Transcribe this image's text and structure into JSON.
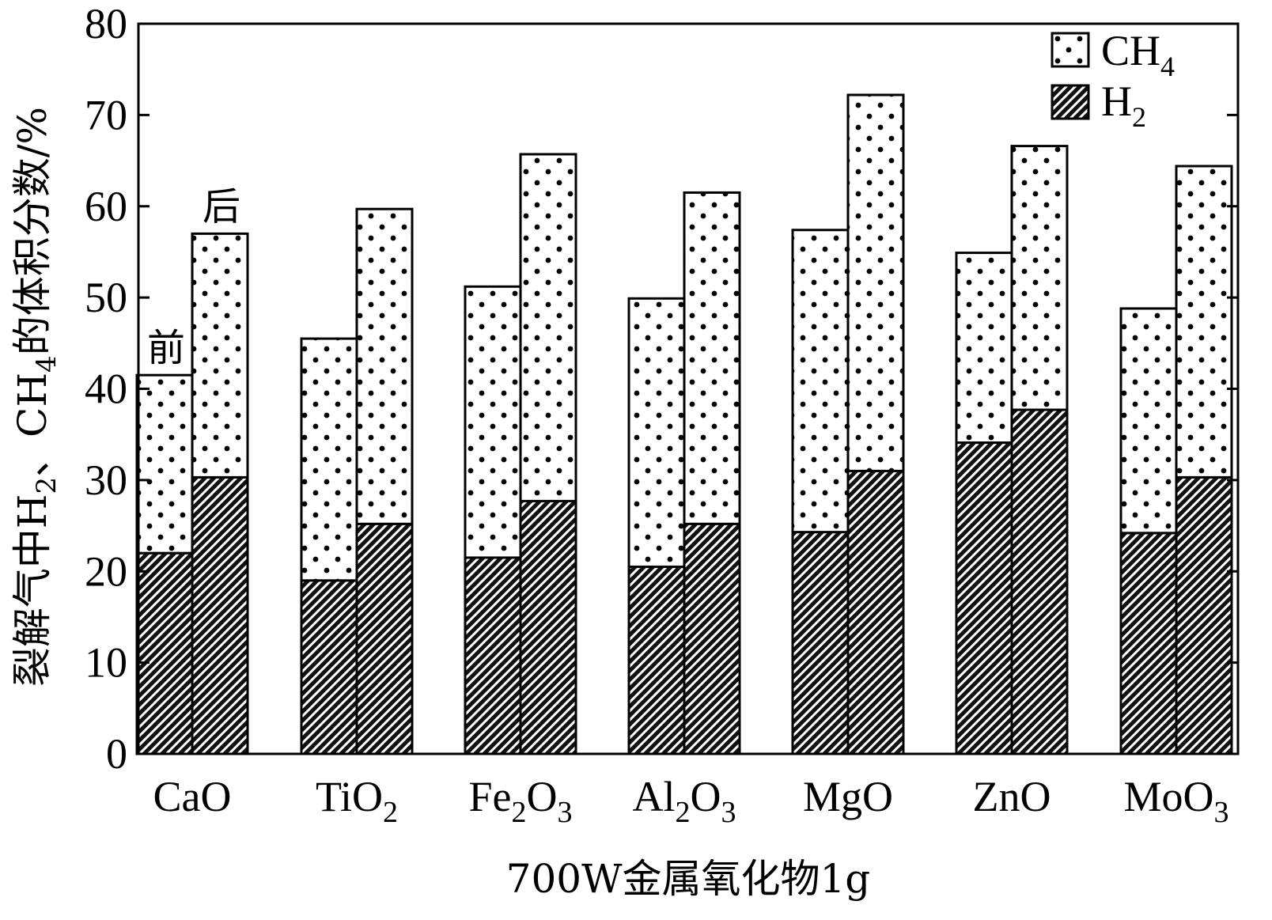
{
  "chart_data": {
    "type": "bar",
    "stacked": true,
    "categories": [
      "CaO",
      "TiO2",
      "Fe2O3",
      "Al2O3",
      "MgO",
      "ZnO",
      "MoO3"
    ],
    "category_labels": [
      {
        "base": "CaO",
        "sub": "",
        "tail": ""
      },
      {
        "base": "TiO",
        "sub": "2",
        "tail": ""
      },
      {
        "base": "Fe",
        "sub": "2",
        "tail": "O",
        "sub2": "3"
      },
      {
        "base": "Al",
        "sub": "2",
        "tail": "O",
        "sub2": "3"
      },
      {
        "base": "MgO",
        "sub": "",
        "tail": ""
      },
      {
        "base": "ZnO",
        "sub": "",
        "tail": ""
      },
      {
        "base": "MoO",
        "sub": "3",
        "tail": ""
      }
    ],
    "groups": [
      "前",
      "后"
    ],
    "series": [
      {
        "name": "H2",
        "label_base": "H",
        "label_sub": "2",
        "pattern": "hatch",
        "values_before": [
          22.0,
          19.0,
          21.5,
          20.5,
          24.3,
          34.1,
          24.2
        ],
        "values_after": [
          30.3,
          25.2,
          27.7,
          25.2,
          31.0,
          37.7,
          30.3
        ]
      },
      {
        "name": "CH4",
        "label_base": "CH",
        "label_sub": "4",
        "pattern": "dots",
        "values_before": [
          19.5,
          26.5,
          29.7,
          29.4,
          33.1,
          20.8,
          24.6
        ],
        "values_after": [
          26.7,
          34.5,
          38.0,
          36.3,
          41.2,
          28.9,
          34.1
        ]
      }
    ],
    "xlabel": "700W金属氧化物1g",
    "ylabel_parts": {
      "p1": "裂解气中H",
      "s1": "2",
      "p2": "、CH",
      "s2": "4",
      "p3": "的体积分数/%"
    },
    "ylim": [
      0,
      80
    ],
    "yticks": [
      0,
      10,
      20,
      30,
      40,
      50,
      60,
      70,
      80
    ],
    "legend_position": "top-right",
    "annotations": {
      "before": "前",
      "after": "后"
    },
    "grid": false
  }
}
